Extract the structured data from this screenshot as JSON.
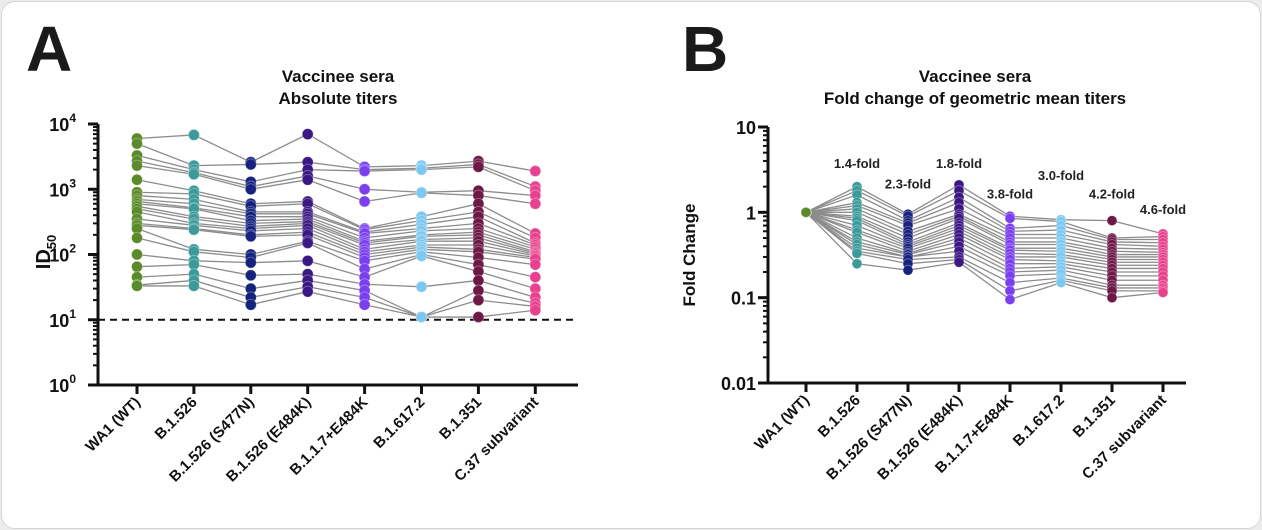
{
  "panels": {
    "a_letter": "A",
    "b_letter": "B"
  },
  "colors": {
    "WA1 (WT)": "#5b8a2a",
    "B.1.526": "#3c9a9c",
    "B.1.526 (S477N)": "#16237e",
    "B.1.526 (E484K)": "#3a1782",
    "B.1.1.7+E484K": "#7b3ff0",
    "B.1.617.2": "#7ec8f0",
    "B.1.351": "#6e1846",
    "C.37 subvariant": "#e8428e",
    "line": "#8c8c8c"
  },
  "chart_data": [
    {
      "type": "scatter",
      "subtype": "paired-dot-line",
      "title": "Vaccinee sera",
      "subtitle": "Absolute titers",
      "xlabel": "",
      "ylabel": "ID",
      "ylabel_sub": "50",
      "yscale": "log",
      "ylim": [
        1,
        10000
      ],
      "yticks": [
        {
          "base": "10",
          "exp": "0",
          "value": 1
        },
        {
          "base": "10",
          "exp": "1",
          "value": 10
        },
        {
          "base": "10",
          "exp": "2",
          "value": 100
        },
        {
          "base": "10",
          "exp": "3",
          "value": 1000
        },
        {
          "base": "10",
          "exp": "4",
          "value": 10000
        }
      ],
      "reference_line": {
        "value": 10,
        "style": "dashed"
      },
      "categories": [
        "WA1 (WT)",
        "B.1.526",
        "B.1.526 (S477N)",
        "B.1.526 (E484K)",
        "B.1.1.7+E484K",
        "B.1.617.2",
        "B.1.351",
        "C.37 subvariant"
      ],
      "series": [
        {
          "name": "donor-1",
          "values": [
            6000,
            6800,
            2600,
            7000,
            2200,
            2300,
            2700,
            1900
          ]
        },
        {
          "name": "donor-2",
          "values": [
            5000,
            2300,
            2400,
            2600,
            2000,
            2100,
            2400,
            1100
          ]
        },
        {
          "name": "donor-3",
          "values": [
            3300,
            2000,
            1300,
            2000,
            1900,
            2000,
            2200,
            950
          ]
        },
        {
          "name": "donor-4",
          "values": [
            2700,
            1800,
            1100,
            1600,
            1000,
            900,
            950,
            800
          ]
        },
        {
          "name": "donor-5",
          "values": [
            2300,
            1700,
            1000,
            1400,
            650,
            880,
            800,
            600
          ]
        },
        {
          "name": "donor-6",
          "values": [
            1400,
            950,
            600,
            650,
            250,
            380,
            600,
            210
          ]
        },
        {
          "name": "donor-7",
          "values": [
            900,
            850,
            550,
            600,
            240,
            330,
            450,
            180
          ]
        },
        {
          "name": "donor-8",
          "values": [
            800,
            700,
            450,
            450,
            220,
            290,
            380,
            150
          ]
        },
        {
          "name": "donor-9",
          "values": [
            700,
            600,
            420,
            420,
            210,
            250,
            300,
            140
          ]
        },
        {
          "name": "donor-10",
          "values": [
            650,
            520,
            380,
            380,
            180,
            230,
            250,
            130
          ]
        },
        {
          "name": "donor-11",
          "values": [
            600,
            500,
            330,
            350,
            160,
            200,
            220,
            120
          ]
        },
        {
          "name": "donor-12",
          "values": [
            550,
            380,
            300,
            320,
            150,
            190,
            200,
            110
          ]
        },
        {
          "name": "donor-13",
          "values": [
            500,
            350,
            270,
            300,
            140,
            170,
            180,
            105
          ]
        },
        {
          "name": "donor-14",
          "values": [
            450,
            300,
            250,
            280,
            120,
            160,
            160,
            100
          ]
        },
        {
          "name": "donor-15",
          "values": [
            350,
            280,
            230,
            250,
            110,
            140,
            140,
            95
          ]
        },
        {
          "name": "donor-16",
          "values": [
            300,
            250,
            200,
            220,
            100,
            130,
            120,
            90
          ]
        },
        {
          "name": "donor-17",
          "values": [
            280,
            240,
            190,
            200,
            90,
            120,
            110,
            85
          ]
        },
        {
          "name": "donor-18",
          "values": [
            250,
            120,
            100,
            160,
            80,
            110,
            90,
            70
          ]
        },
        {
          "name": "donor-19",
          "values": [
            180,
            110,
            90,
            150,
            60,
            100,
            70,
            45
          ]
        },
        {
          "name": "donor-20",
          "values": [
            100,
            80,
            75,
            80,
            45,
            95,
            55,
            30
          ]
        },
        {
          "name": "donor-21",
          "values": [
            65,
            70,
            48,
            50,
            35,
            32,
            40,
            22
          ]
        },
        {
          "name": "donor-22",
          "values": [
            45,
            50,
            30,
            40,
            28,
            11,
            28,
            18
          ]
        },
        {
          "name": "donor-23",
          "values": [
            34,
            40,
            22,
            32,
            22,
            11,
            20,
            16
          ]
        },
        {
          "name": "donor-24",
          "values": [
            33,
            33,
            17,
            27,
            17,
            11,
            11,
            14
          ]
        }
      ]
    },
    {
      "type": "scatter",
      "subtype": "paired-dot-line",
      "title": "Vaccinee sera",
      "subtitle": "Fold change of geometric mean titers",
      "xlabel": "",
      "ylabel": "Fold Change",
      "yscale": "log",
      "ylim": [
        0.01,
        10
      ],
      "yticks": [
        {
          "label": "0.01",
          "value": 0.01
        },
        {
          "label": "0.1",
          "value": 0.1
        },
        {
          "label": "1",
          "value": 1
        },
        {
          "label": "10",
          "value": 10
        }
      ],
      "categories": [
        "WA1 (WT)",
        "B.1.526",
        "B.1.526 (S477N)",
        "B.1.526 (E484K)",
        "B.1.1.7+E484K",
        "B.1.617.2",
        "B.1.351",
        "C.37 subvariant"
      ],
      "annotations": [
        {
          "category": "B.1.526",
          "text": "1.4-fold",
          "value": 3.3
        },
        {
          "category": "B.1.526 (S477N)",
          "text": "2.3-fold",
          "value": 1.9
        },
        {
          "category": "B.1.526 (E484K)",
          "text": "1.8-fold",
          "value": 3.3
        },
        {
          "category": "B.1.1.7+E484K",
          "text": "3.8-fold",
          "value": 1.45
        },
        {
          "category": "B.1.617.2",
          "text": "3.0-fold",
          "value": 2.4
        },
        {
          "category": "B.1.351",
          "text": "4.2-fold",
          "value": 1.45
        },
        {
          "category": "C.37 subvariant",
          "text": "4.6-fold",
          "value": 0.95
        }
      ],
      "series": [
        {
          "name": "donor-1",
          "values": [
            1,
            2.0,
            0.95,
            2.1,
            0.9,
            0.82,
            0.8,
            0.56
          ]
        },
        {
          "name": "donor-2",
          "values": [
            1,
            1.8,
            0.9,
            1.8,
            0.85,
            0.78,
            0.5,
            0.52
          ]
        },
        {
          "name": "donor-3",
          "values": [
            1,
            1.6,
            0.8,
            1.5,
            0.65,
            0.7,
            0.48,
            0.48
          ]
        },
        {
          "name": "donor-4",
          "values": [
            1,
            1.3,
            0.75,
            1.3,
            0.6,
            0.62,
            0.45,
            0.44
          ]
        },
        {
          "name": "donor-5",
          "values": [
            1,
            1.2,
            0.7,
            1.1,
            0.55,
            0.55,
            0.42,
            0.4
          ]
        },
        {
          "name": "donor-6",
          "values": [
            1,
            1.1,
            0.6,
            0.95,
            0.5,
            0.5,
            0.38,
            0.37
          ]
        },
        {
          "name": "donor-7",
          "values": [
            1,
            1.0,
            0.55,
            0.9,
            0.45,
            0.45,
            0.35,
            0.34
          ]
        },
        {
          "name": "donor-8",
          "values": [
            1,
            0.9,
            0.5,
            0.85,
            0.42,
            0.42,
            0.32,
            0.32
          ]
        },
        {
          "name": "donor-9",
          "values": [
            1,
            0.85,
            0.45,
            0.75,
            0.38,
            0.38,
            0.3,
            0.3
          ]
        },
        {
          "name": "donor-10",
          "values": [
            1,
            0.8,
            0.42,
            0.7,
            0.36,
            0.35,
            0.28,
            0.28
          ]
        },
        {
          "name": "donor-11",
          "values": [
            1,
            0.7,
            0.4,
            0.65,
            0.33,
            0.32,
            0.26,
            0.26
          ]
        },
        {
          "name": "donor-12",
          "values": [
            1,
            0.62,
            0.38,
            0.6,
            0.3,
            0.3,
            0.24,
            0.24
          ]
        },
        {
          "name": "donor-13",
          "values": [
            1,
            0.58,
            0.35,
            0.55,
            0.28,
            0.27,
            0.22,
            0.22
          ]
        },
        {
          "name": "donor-14",
          "values": [
            1,
            0.5,
            0.33,
            0.5,
            0.25,
            0.25,
            0.2,
            0.2
          ]
        },
        {
          "name": "donor-15",
          "values": [
            1,
            0.45,
            0.32,
            0.45,
            0.22,
            0.23,
            0.18,
            0.18
          ]
        },
        {
          "name": "donor-16",
          "values": [
            1,
            0.42,
            0.3,
            0.4,
            0.2,
            0.21,
            0.16,
            0.16
          ]
        },
        {
          "name": "donor-17",
          "values": [
            1,
            0.38,
            0.3,
            0.35,
            0.18,
            0.19,
            0.14,
            0.14
          ]
        },
        {
          "name": "donor-18",
          "values": [
            1,
            0.35,
            0.28,
            0.3,
            0.15,
            0.17,
            0.13,
            0.13
          ]
        },
        {
          "name": "donor-19",
          "values": [
            1,
            0.33,
            0.25,
            0.28,
            0.12,
            0.16,
            0.12,
            0.12
          ]
        },
        {
          "name": "donor-20",
          "values": [
            1,
            0.25,
            0.21,
            0.26,
            0.095,
            0.15,
            0.1,
            0.115
          ]
        }
      ]
    }
  ]
}
